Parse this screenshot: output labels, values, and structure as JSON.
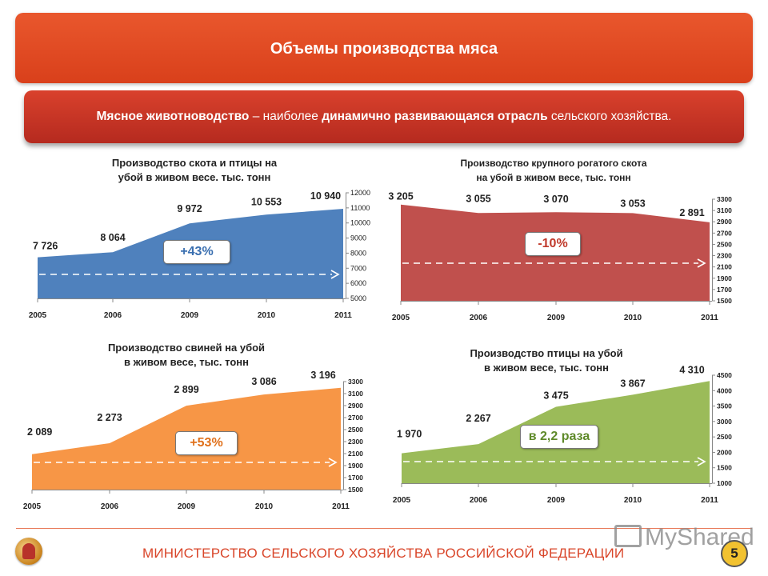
{
  "header": {
    "title": "Объемы производства мяса"
  },
  "subtitle": {
    "part1": "Мясное животноводство",
    "part2": " – наиболее ",
    "part3": "динамично развивающаяся отрасль",
    "part4": " сельского хозяйства."
  },
  "chart_data": [
    {
      "type": "area",
      "title_line1": "Производство скота и птицы на",
      "title_line2": "убой в живом весе. тыс. тонн",
      "categories": [
        "2005",
        "2006",
        "2009",
        "2010",
        "2011"
      ],
      "values": [
        7726,
        8064,
        9972,
        10553,
        10940
      ],
      "value_labels": [
        "7 726",
        "8 064",
        "9 972",
        "10 553",
        "10 940"
      ],
      "ylim": [
        5000,
        12000
      ],
      "yticks": [
        "5000",
        "6000",
        "7000",
        "8000",
        "9000",
        "10000",
        "11000",
        "12000"
      ],
      "badge": "+43%",
      "color": "#4f81bd",
      "badge_color": "#3a6fb0"
    },
    {
      "type": "area",
      "title_line1": "Производство крупного рогатого скота",
      "title_line2": "на убой в живом весе, тыс. тонн",
      "categories": [
        "2005",
        "2006",
        "2009",
        "2010",
        "2011"
      ],
      "values": [
        3205,
        3055,
        3070,
        3053,
        2891
      ],
      "value_labels": [
        "3 205",
        "3 055",
        "3 070",
        "3 053",
        "2 891"
      ],
      "ylim": [
        1500,
        3300
      ],
      "yticks": [
        "1500",
        "1700",
        "1900",
        "2100",
        "2300",
        "2500",
        "2700",
        "2900",
        "3100",
        "3300"
      ],
      "badge": "-10%",
      "color": "#c0504d",
      "badge_color": "#c0392b"
    },
    {
      "type": "area",
      "title_line1": "Производство свиней на убой",
      "title_line2": "в живом весе, тыс. тонн",
      "categories": [
        "2005",
        "2006",
        "2009",
        "2010",
        "2011"
      ],
      "values": [
        2089,
        2273,
        2899,
        3086,
        3196
      ],
      "value_labels": [
        "2 089",
        "2 273",
        "2 899",
        "3 086",
        "3 196"
      ],
      "ylim": [
        1500,
        3300
      ],
      "yticks": [
        "1500",
        "1700",
        "1900",
        "2100",
        "2300",
        "2500",
        "2700",
        "2900",
        "3100",
        "3300"
      ],
      "badge": "+53%",
      "color": "#f79646",
      "badge_color": "#e0701a"
    },
    {
      "type": "area",
      "title_line1": "Производство птицы на убой",
      "title_line2": "в живом весе, тыс. тонн",
      "categories": [
        "2005",
        "2006",
        "2009",
        "2010",
        "2011"
      ],
      "values": [
        1970,
        2267,
        3475,
        3867,
        4310
      ],
      "value_labels": [
        "1 970",
        "2 267",
        "3 475",
        "3 867",
        "4 310"
      ],
      "ylim": [
        1000,
        4500
      ],
      "yticks": [
        "1000",
        "1500",
        "2000",
        "2500",
        "3000",
        "3500",
        "4000",
        "4500"
      ],
      "badge": "в 2,2 раза",
      "color": "#9bbb59",
      "badge_color": "#5f8a2a"
    }
  ],
  "footer": {
    "ministry": "МИНИСТЕРСТВО СЕЛЬСКОГО ХОЗЯЙСТВА РОССИЙСКОЙ ФЕДЕРАЦИИ",
    "page_number": "5",
    "watermark": "MyShared"
  }
}
